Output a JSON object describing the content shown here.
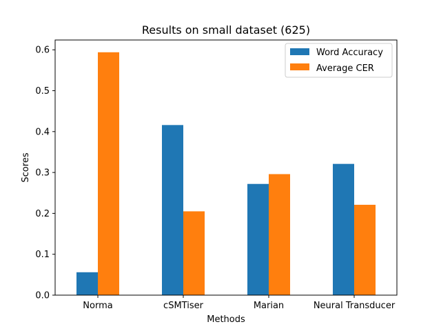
{
  "chart_data": {
    "type": "bar",
    "title": "Results on small dataset (625)",
    "xlabel": "Methods",
    "ylabel": "Scores",
    "categories": [
      "Norma",
      "cSMTiser",
      "Marian",
      "Neural Transducer"
    ],
    "series": [
      {
        "name": "Word Accuracy",
        "values": [
          0.056,
          0.416,
          0.272,
          0.321
        ],
        "color": "#1f77b4"
      },
      {
        "name": "Average CER",
        "values": [
          0.594,
          0.205,
          0.296,
          0.221
        ],
        "color": "#ff7f0e"
      }
    ],
    "ylim": [
      0,
      0.624
    ],
    "yticks": [
      0.0,
      0.1,
      0.2,
      0.3,
      0.4,
      0.5,
      0.6
    ],
    "ytick_labels": [
      "0.0",
      "0.1",
      "0.2",
      "0.3",
      "0.4",
      "0.5",
      "0.6"
    ],
    "legend_position": "top-right",
    "grid": false
  }
}
